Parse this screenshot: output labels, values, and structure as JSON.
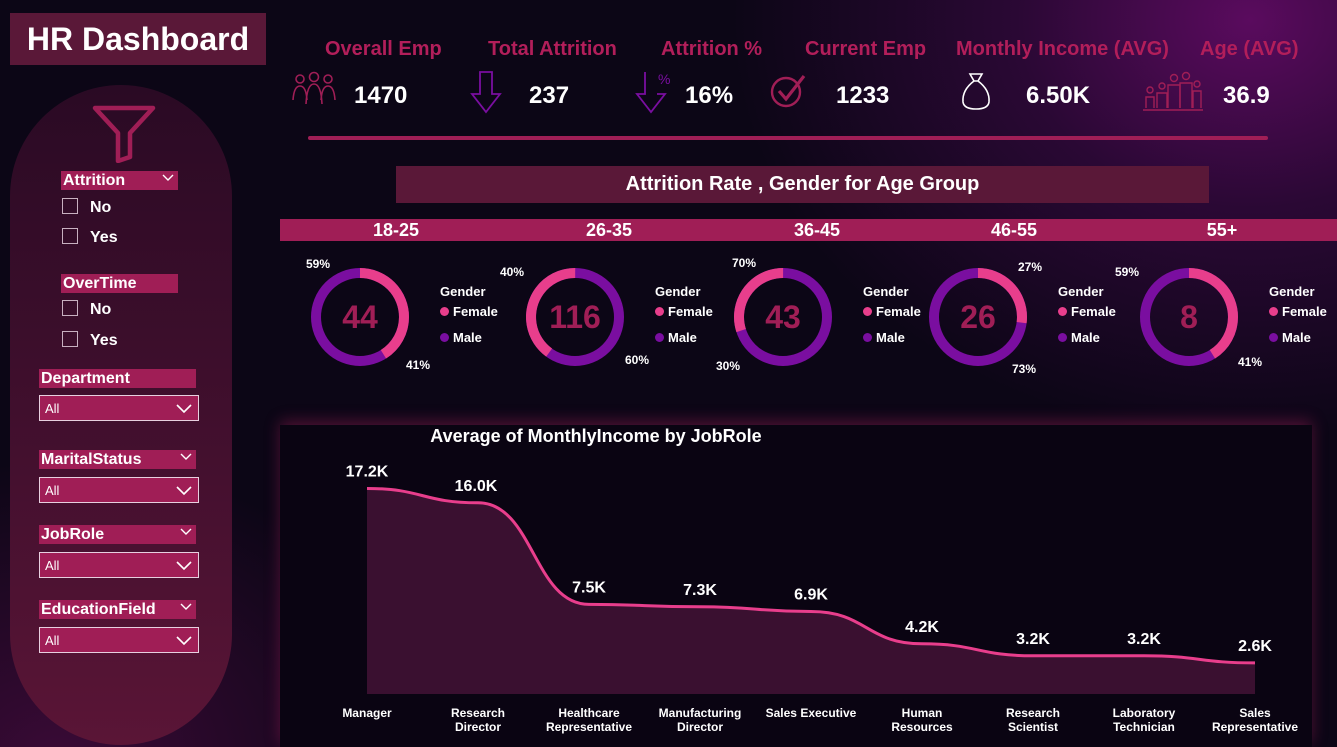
{
  "title": "HR Dashboard",
  "kpis": [
    {
      "label": "Overall Emp",
      "value": "1470",
      "icon": "people-group-icon"
    },
    {
      "label": "Total Attrition",
      "value": "237",
      "icon": "arrow-down-icon"
    },
    {
      "label": "Attrition %",
      "value": "16%",
      "icon": "percent-down-icon"
    },
    {
      "label": "Current Emp",
      "value": "1233",
      "icon": "check-circle-icon"
    },
    {
      "label": "Monthly Income (AVG)",
      "value": "6.50K",
      "icon": "money-bag-icon"
    },
    {
      "label": "Age (AVG)",
      "value": "36.9",
      "icon": "family-icon"
    }
  ],
  "filters": {
    "attrition": {
      "label": "Attrition",
      "options": [
        "No",
        "Yes"
      ]
    },
    "overtime": {
      "label": "OverTime",
      "options": [
        "No",
        "Yes"
      ]
    },
    "department": {
      "label": "Department",
      "value": "All"
    },
    "marital": {
      "label": "MaritalStatus",
      "value": "All"
    },
    "jobrole": {
      "label": "JobRole",
      "value": "All"
    },
    "education": {
      "label": "EducationField",
      "value": "All"
    }
  },
  "donut_section": {
    "title": "Attrition Rate , Gender for Age Group",
    "legend_title": "Gender",
    "legend_female": "Female",
    "legend_male": "Male",
    "colors": {
      "female": "#e83e8c",
      "male": "#7a0ea0"
    },
    "groups": [
      {
        "label": "18-25",
        "total": "44",
        "male_pct": "59%",
        "female_pct": "41%"
      },
      {
        "label": "26-35",
        "total": "116",
        "female_pct": "40%",
        "male_pct": "60%"
      },
      {
        "label": "36-45",
        "total": "43",
        "male_pct": "70%",
        "female_pct": "30%"
      },
      {
        "label": "46-55",
        "total": "26",
        "female_pct": "27%",
        "male_pct": "73%"
      },
      {
        "label": "55+",
        "total": "8",
        "male_pct": "59%",
        "female_pct": "41%"
      }
    ]
  },
  "chart_data": {
    "type": "area",
    "title": "Average of MonthlyIncome by JobRole",
    "categories": [
      "Manager",
      "Research Director",
      "Healthcare Representative",
      "Manufacturing Director",
      "Sales Executive",
      "Human Resources",
      "Research Scientist",
      "Laboratory Technician",
      "Sales Representative"
    ],
    "values": [
      17.2,
      16.0,
      7.5,
      7.3,
      6.9,
      4.2,
      3.2,
      3.2,
      2.6
    ],
    "value_labels": [
      "17.2K",
      "16.0K",
      "7.5K",
      "7.3K",
      "6.9K",
      "4.2K",
      "3.2K",
      "3.2K",
      "2.6K"
    ],
    "ylim": [
      0,
      20
    ],
    "grid": false,
    "line_color": "#e83e8c",
    "fill_color": "#3a1030"
  }
}
